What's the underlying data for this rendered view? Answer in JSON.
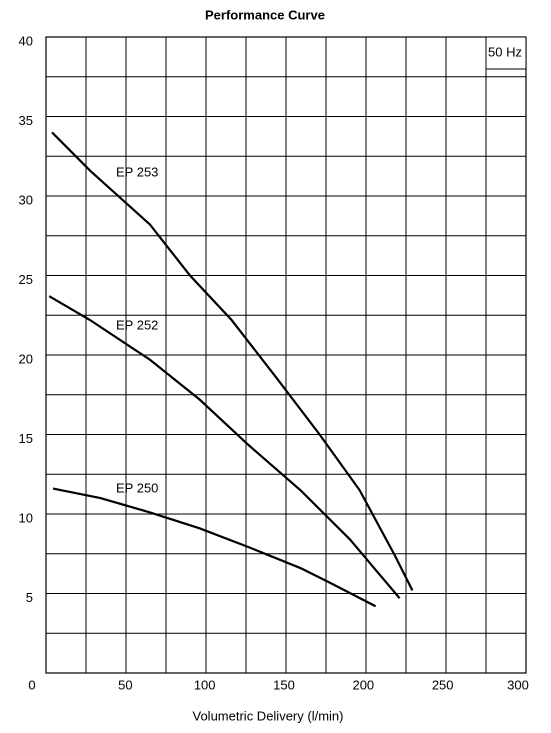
{
  "chart_data": {
    "type": "line",
    "title": "Performance Curve",
    "x_label": "Volumetric Delivery (l/min)",
    "annotation": "50 Hz",
    "xlim": [
      0,
      300
    ],
    "xticks": [
      0,
      50,
      100,
      150,
      200,
      250,
      300
    ],
    "minor_xticks": [
      25,
      75,
      125,
      175,
      225,
      275
    ],
    "ylim": [
      0,
      40
    ],
    "yticks": [
      5,
      10,
      15,
      20,
      25,
      30,
      35,
      40
    ],
    "minor_yticks": [
      2.5,
      7.5,
      12.5,
      17.5,
      22.5,
      27.5,
      32.5,
      37.5
    ],
    "grid": true,
    "series": [
      {
        "name": "EP 253",
        "color": "#000000",
        "x": [
          3.75,
          27.5,
          65,
          90,
          116,
          143,
          171,
          196,
          218,
          229
        ],
        "values": [
          34.0,
          31.6,
          28.2,
          25.0,
          22.2,
          18.7,
          15.0,
          11.5,
          7.4,
          5.2
        ]
      },
      {
        "name": "EP 252",
        "color": "#000000",
        "x": [
          2,
          27.5,
          65,
          96,
          127,
          159,
          190,
          221
        ],
        "values": [
          23.7,
          22.2,
          19.7,
          17.2,
          14.3,
          11.5,
          8.4,
          4.7
        ]
      },
      {
        "name": "EP 250",
        "color": "#000000",
        "x": [
          4.4,
          34,
          65,
          96,
          127,
          159,
          177,
          206
        ],
        "values": [
          11.6,
          11.0,
          10.1,
          9.1,
          7.9,
          6.6,
          5.7,
          4.2
        ]
      }
    ]
  }
}
